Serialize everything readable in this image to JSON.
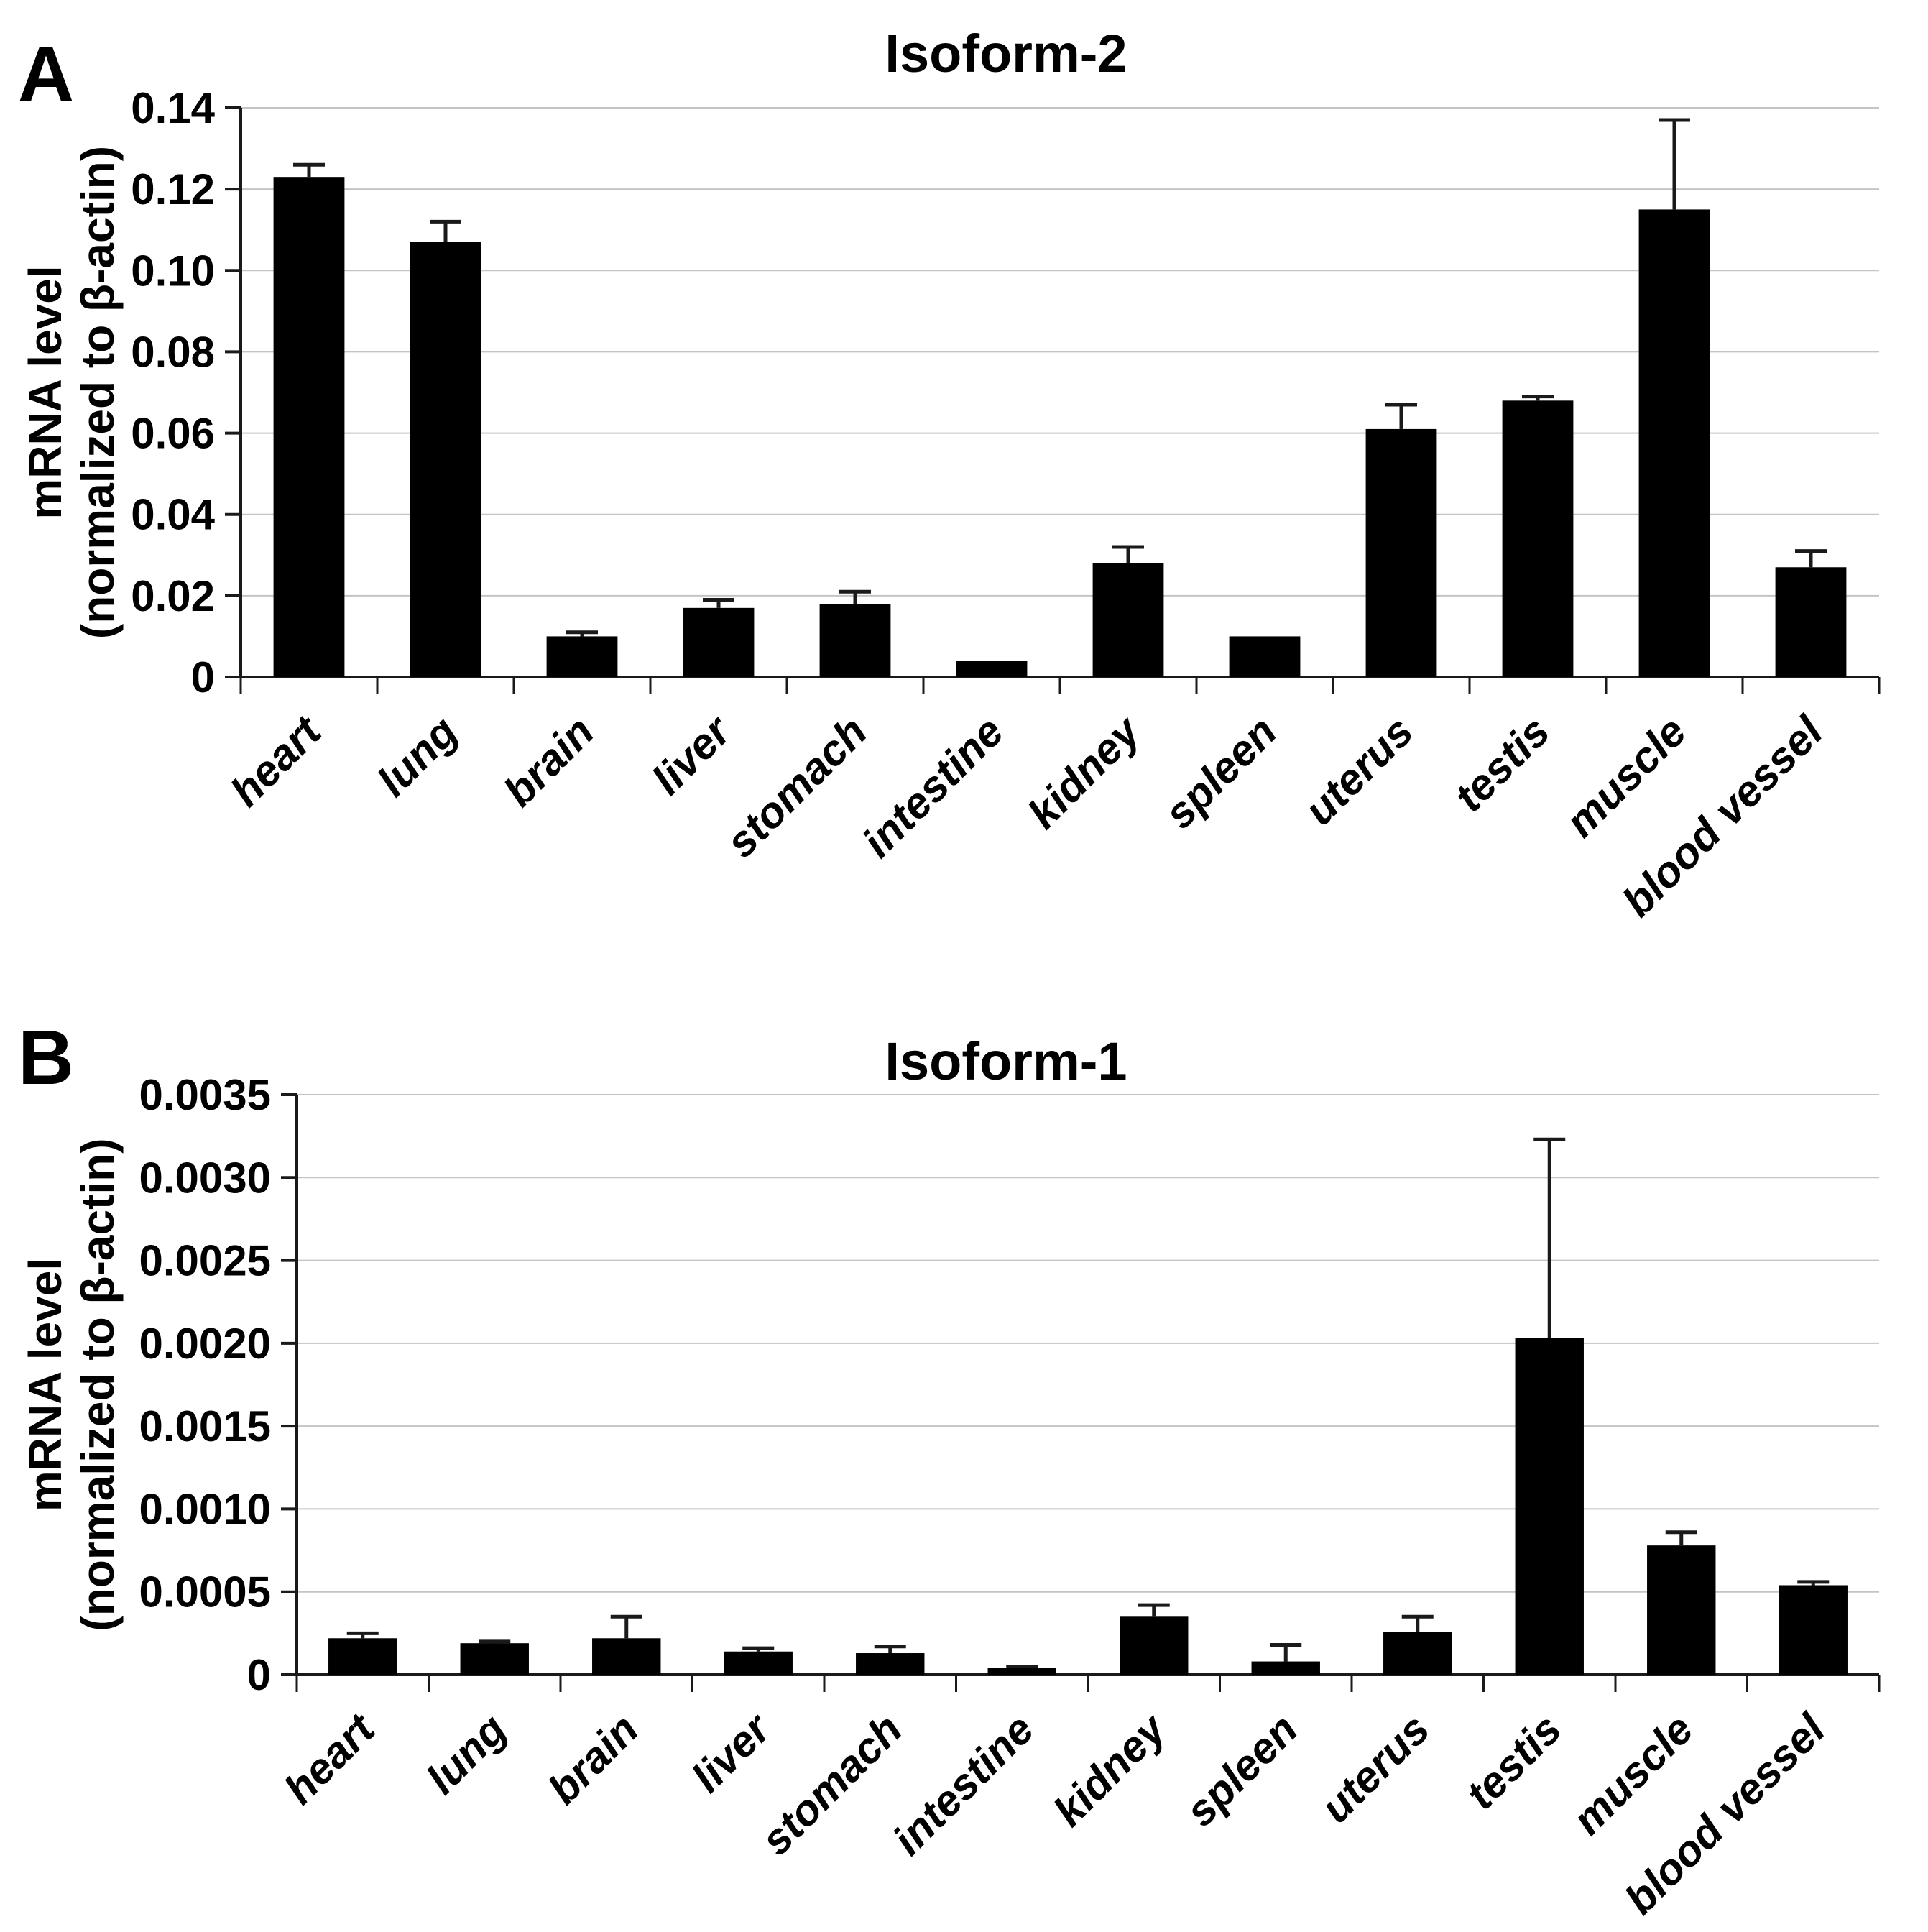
{
  "figure": {
    "background": "#ffffff",
    "panels": [
      {
        "letter": "A",
        "title": "Isoform-2"
      },
      {
        "letter": "B",
        "title": "Isoform-1"
      }
    ]
  },
  "chart_data": [
    {
      "type": "bar",
      "panel": "A",
      "panel_label": "A",
      "title": "Isoform-2",
      "ylabel_line1": "mRNA level",
      "ylabel_line2": "(normalized to β-actin)",
      "xlabel": "",
      "categories": [
        "heart",
        "lung",
        "brain",
        "liver",
        "stomach",
        "intestine",
        "kidney",
        "spleen",
        "uterus",
        "testis",
        "muscle",
        "blood vessel"
      ],
      "values": [
        0.123,
        0.107,
        0.01,
        0.017,
        0.018,
        0.004,
        0.028,
        0.01,
        0.061,
        0.068,
        0.115,
        0.027
      ],
      "errors_plus": [
        0.003,
        0.005,
        0.001,
        0.002,
        0.003,
        0.0,
        0.004,
        0.0,
        0.006,
        0.001,
        0.022,
        0.004
      ],
      "ylim": [
        0,
        0.14
      ],
      "ytick_step": 0.02,
      "ytick_labels": [
        "0",
        "0.02",
        "0.04",
        "0.06",
        "0.08",
        "0.10",
        "0.12",
        "0.14"
      ],
      "grid": true,
      "legend_position": "none",
      "bar_color": "#000000",
      "gridline_color": "#c4c4c4",
      "axis_color": "#1a1a1a",
      "error_bar_color": "#1a1a1a"
    },
    {
      "type": "bar",
      "panel": "B",
      "panel_label": "B",
      "title": "Isoform-1",
      "ylabel_line1": "mRNA level",
      "ylabel_line2": "(normalized to β-actin)",
      "xlabel": "",
      "categories": [
        "heart",
        "lung",
        "brain",
        "liver",
        "stomach",
        "intestine",
        "kidney",
        "spleen",
        "uterus",
        "testis",
        "muscle",
        "blood vessel"
      ],
      "values": [
        0.00022,
        0.00019,
        0.00022,
        0.00014,
        0.00013,
        4e-05,
        0.00035,
        8e-05,
        0.00026,
        0.00203,
        0.00078,
        0.00054
      ],
      "errors_plus": [
        3e-05,
        1e-05,
        0.00013,
        2e-05,
        4e-05,
        1e-05,
        7e-05,
        0.0001,
        9e-05,
        0.0012,
        8e-05,
        2e-05
      ],
      "ylim": [
        0,
        0.0035
      ],
      "ytick_step": 0.0005,
      "ytick_labels": [
        "0",
        "0.0005",
        "0.0010",
        "0.0015",
        "0.0020",
        "0.0025",
        "0.0030",
        "0.0035"
      ],
      "grid": true,
      "legend_position": "none",
      "bar_color": "#000000",
      "gridline_color": "#c4c4c4",
      "axis_color": "#1a1a1a",
      "error_bar_color": "#1a1a1a"
    }
  ]
}
